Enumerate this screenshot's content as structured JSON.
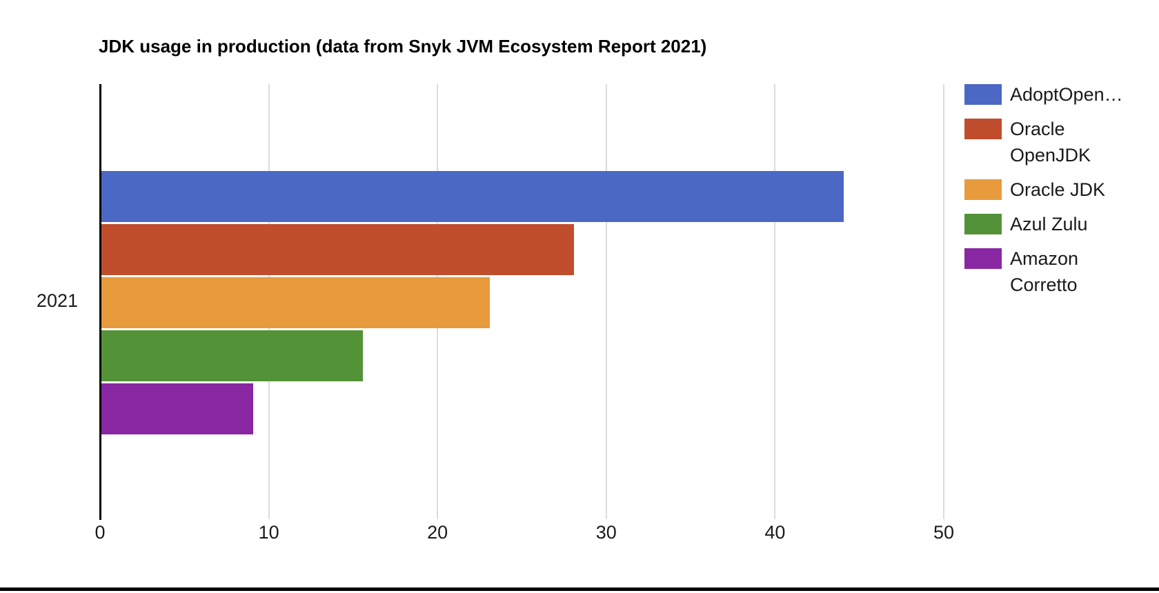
{
  "page": {
    "background": "#ffffff",
    "bottom_border_color": "#000000"
  },
  "chart_data": {
    "type": "bar",
    "orientation": "horizontal",
    "title": "JDK usage in production (data from Snyk JVM Ecosystem Report 2021)",
    "categories": [
      "2021"
    ],
    "series": [
      {
        "name": "AdoptOpenJDK",
        "legend_label": "AdoptOpen…",
        "color": "#4c68c5",
        "values": [
          44
        ]
      },
      {
        "name": "Oracle OpenJDK",
        "legend_label": "Oracle OpenJDK",
        "color": "#c04d2b",
        "values": [
          28
        ]
      },
      {
        "name": "Oracle JDK",
        "legend_label": "Oracle JDK",
        "color": "#e79b3c",
        "values": [
          23
        ]
      },
      {
        "name": "Azul Zulu",
        "legend_label": "Azul Zulu",
        "color": "#549238",
        "values": [
          15.5
        ]
      },
      {
        "name": "Amazon Corretto",
        "legend_label": "Amazon Corretto",
        "color": "#8926a2",
        "values": [
          9
        ]
      }
    ],
    "x_ticks": [
      0,
      10,
      20,
      30,
      40,
      50
    ],
    "xlim": [
      0,
      50.5
    ],
    "grid": true,
    "legend_position": "right",
    "axis_color": "#000000",
    "gridline_color": "#dcdcdc",
    "label_color": "#1a1a1a"
  }
}
